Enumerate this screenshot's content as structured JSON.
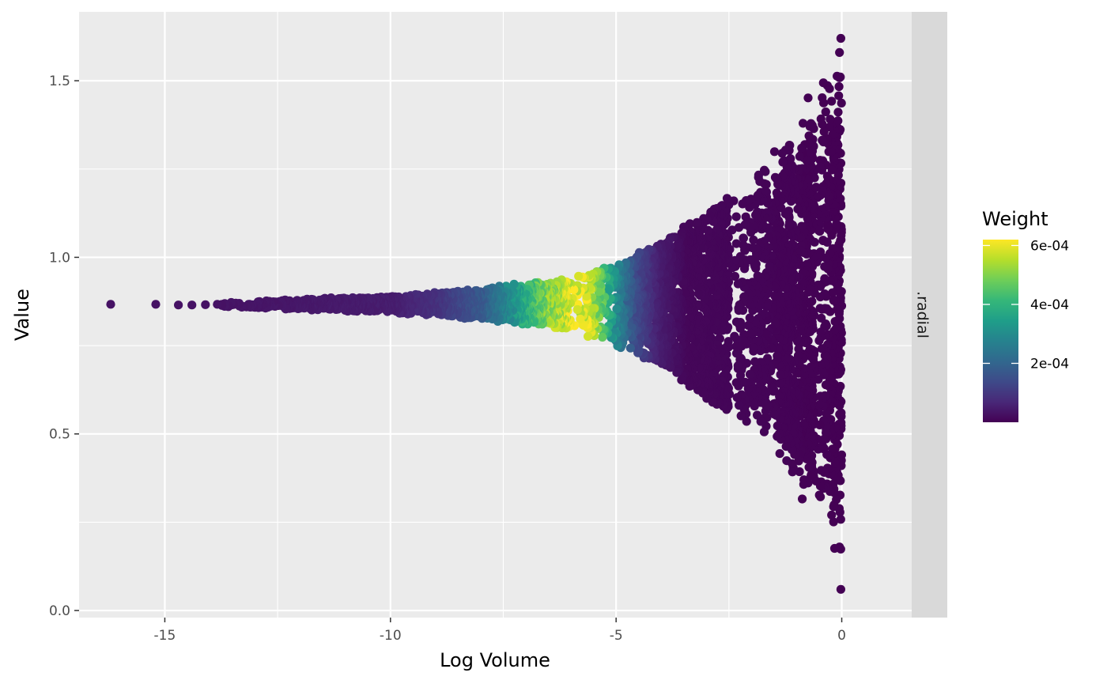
{
  "chart_data": {
    "type": "scatter",
    "title": "",
    "xlabel": "Log Volume",
    "ylabel": "Value",
    "xlim": [
      -16.9,
      1.55
    ],
    "ylim": [
      -0.02,
      1.695
    ],
    "x_ticks": [
      -15,
      -10,
      -5,
      0
    ],
    "x_tick_labels": [
      "-15",
      "-10",
      "-5",
      "0"
    ],
    "y_ticks": [
      0.0,
      0.5,
      1.0,
      1.5
    ],
    "y_tick_labels": [
      "0.0",
      "0.5",
      "1.0",
      "1.5"
    ],
    "grid": true,
    "facet_strip": ".radial",
    "legend": {
      "title": "Weight",
      "placement": "right",
      "range": [
        0.0,
        0.00062
      ],
      "ticks": [
        0.0002,
        0.0004,
        0.0006
      ],
      "tick_labels": [
        "2e-04",
        "4e-04",
        "6e-04"
      ],
      "palette": [
        "#440154",
        "#482878",
        "#3e4a89",
        "#31688e",
        "#26828e",
        "#1f9e89",
        "#35b779",
        "#6ece58",
        "#b5de2b",
        "#fde725"
      ]
    },
    "series": [
      {
        "description_points": [
          {
            "x": -16.2,
            "y": 0.867,
            "weight": 3e-05
          },
          {
            "x": -15.2,
            "y": 0.867,
            "weight": 3e-05
          },
          {
            "x": -14.7,
            "y": 0.865,
            "weight": 3e-05
          },
          {
            "x": -14.4,
            "y": 0.865,
            "weight": 3e-05
          },
          {
            "x": -14.1,
            "y": 0.866,
            "weight": 3e-05
          },
          {
            "x": -0.02,
            "y": 1.62,
            "weight": 0.0
          },
          {
            "x": -0.02,
            "y": 0.06,
            "weight": 0.0
          },
          {
            "x": -0.05,
            "y": 0.18,
            "weight": 0.0
          },
          {
            "x": -0.05,
            "y": 1.58,
            "weight": 0.0
          }
        ],
        "envelope": {
          "center": 0.867,
          "halfwidth_at_x": [
            [
              -14,
              0.006
            ],
            [
              -10,
              0.025
            ],
            [
              -8,
              0.045
            ],
            [
              -6,
              0.08
            ],
            [
              -5,
              0.12
            ],
            [
              -4,
              0.18
            ],
            [
              -3,
              0.27
            ],
            [
              -2,
              0.37
            ],
            [
              -1,
              0.5
            ],
            [
              -0.3,
              0.62
            ],
            [
              0,
              0.8
            ]
          ]
        },
        "weight_profile": [
          [
            -14,
            3e-05
          ],
          [
            -10,
            5e-05
          ],
          [
            -9,
            9e-05
          ],
          [
            -8,
            0.00018
          ],
          [
            -7.3,
            0.00032
          ],
          [
            -6.7,
            0.00048
          ],
          [
            -6,
            0.0006
          ],
          [
            -5.6,
            0.00058
          ],
          [
            -5.3,
            0.00044
          ],
          [
            -5,
            0.00028
          ],
          [
            -4.6,
            0.00014
          ],
          [
            -4.1,
            5e-05
          ],
          [
            -3.5,
            1e-05
          ],
          [
            0,
            0.0
          ]
        ]
      }
    ]
  }
}
